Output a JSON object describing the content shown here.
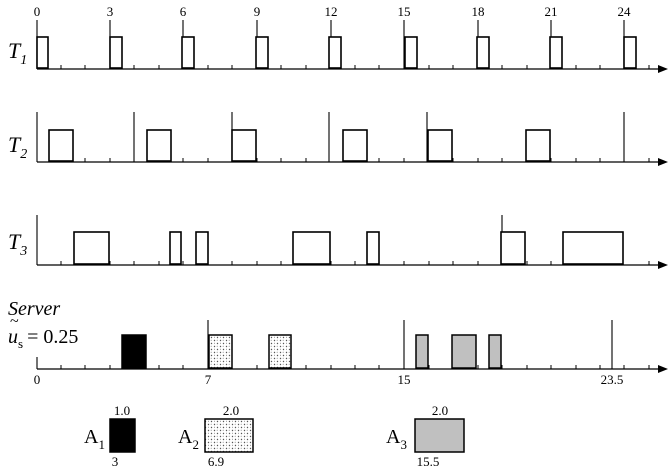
{
  "tasks": {
    "t1": {
      "letter": "T",
      "sub": "1"
    },
    "t2": {
      "letter": "T",
      "sub": "2"
    },
    "t3": {
      "letter": "T",
      "sub": "3"
    }
  },
  "server": {
    "title": "Server",
    "u_symbol": "u",
    "u_sub": "s",
    "u_value": "= 0.25"
  },
  "t1_ticks": [
    "0",
    "3",
    "6",
    "9",
    "12",
    "15",
    "18",
    "21",
    "24"
  ],
  "server_ticks": [
    "0",
    "7",
    "15",
    "23.5"
  ],
  "legend": [
    {
      "name": "A",
      "sub": "1",
      "top": "1.0",
      "bottom": "3",
      "fill": "black"
    },
    {
      "name": "A",
      "sub": "2",
      "top": "2.0",
      "bottom": "6.9",
      "fill": "dotted"
    },
    {
      "name": "A",
      "sub": "3",
      "top": "2.0",
      "bottom": "15.5",
      "fill": "gray"
    }
  ],
  "colors": {
    "gray": "#c0c0c0",
    "black": "#000000",
    "dot": "#555555"
  }
}
